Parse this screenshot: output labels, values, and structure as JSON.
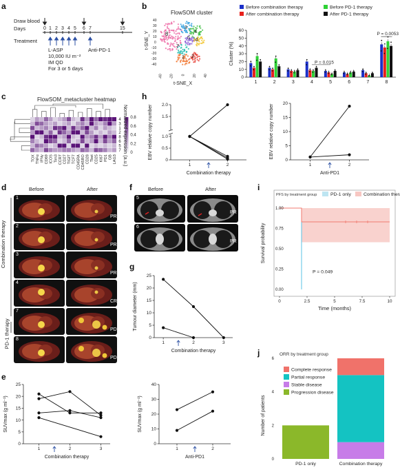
{
  "panels": {
    "a": "a",
    "b": "b",
    "c": "c",
    "d": "d",
    "e": "e",
    "f": "f",
    "g": "g",
    "h": "h",
    "i": "i",
    "j": "j"
  },
  "panel_a": {
    "draw_blood": "Draw blood",
    "days": "Days",
    "treatment": "Treatment",
    "day_ticks": [
      "0",
      "1",
      "2",
      "3",
      "4",
      "5",
      "6",
      "7",
      "15"
    ],
    "lasp": "L-ASP",
    "dose": "10,000 IU m⁻²",
    "route": "IM QD",
    "duration": "For 3 or 5 days",
    "anti_pd1": "Anti-PD-1"
  },
  "panel_b": {
    "tsne_title": "FlowSOM cluster",
    "tsne_xlabel": "t-SNE_X",
    "tsne_ylabel": "t-SNE_Y",
    "tsne_ticks": [
      "40",
      "30",
      "20",
      "10",
      "0",
      "-10",
      "-20",
      "-30",
      "-40"
    ],
    "cluster_labels": [
      "1",
      "2",
      "3",
      "4",
      "5",
      "6",
      "7",
      "8"
    ],
    "pvalue_4": "P = 0.015",
    "pvalue_8": "P = 0.0053"
  },
  "panel_c": {
    "title": "FlowSOM_metacluster heatmap",
    "scale_label": "Normalized expression",
    "scale_unit": "(a.u.)",
    "scale_ticks": [
      "0.8",
      "0.6",
      "0.4",
      "0.2",
      "0"
    ],
    "row_labels": [
      "4",
      "3",
      "1",
      "2",
      "8",
      "6",
      "5",
      "7"
    ],
    "col_labels": [
      "TOX",
      "TNFα",
      "IFNγ",
      "CD69",
      "ICOS",
      "Tim3",
      "CCR7",
      "CD27",
      "TIGIT",
      "TCF7",
      "CD45RA",
      "CD45RO",
      "CD28",
      "Tbet",
      "CD25",
      "KI67",
      "PD1",
      "GB",
      "LAG3"
    ]
  },
  "panel_d": {
    "before": "Before",
    "after": "After",
    "group_combo": "Combination therapy",
    "group_pd1": "PD-1 therapy",
    "rows": [
      {
        "id": "1",
        "response": "PR"
      },
      {
        "id": "2",
        "response": "PR"
      },
      {
        "id": "3",
        "response": "PR"
      },
      {
        "id": "4",
        "response": "CR"
      },
      {
        "id": "7",
        "response": "PD"
      },
      {
        "id": "8",
        "response": "PD"
      }
    ]
  },
  "panel_f": {
    "before": "Before",
    "after": "After",
    "rows": [
      {
        "id": "5",
        "response": "PR"
      },
      {
        "id": "6",
        "response": "PR"
      }
    ]
  },
  "panel_i_extra": {
    "pvalue": "P = 0.049"
  },
  "panel_j_extra": {
    "title": "ORR by treatment group"
  },
  "chart_data": [
    {
      "id": "b",
      "type": "bar",
      "ylabel": "Cluster (%)",
      "ylim": [
        0,
        60
      ],
      "yticks": [
        0,
        10,
        20,
        30,
        40,
        50,
        60
      ],
      "categories": [
        "1",
        "2",
        "3",
        "4",
        "5",
        "6",
        "7",
        "8"
      ],
      "legend_position": "top",
      "series": [
        {
          "name": "Before combination therapy",
          "color": "#1a2fc9",
          "values": [
            18,
            12,
            10,
            20,
            8,
            6,
            9,
            42
          ]
        },
        {
          "name": "After combination therapy",
          "color": "#e8211c",
          "values": [
            12,
            10,
            8,
            9,
            6,
            4,
            5,
            38
          ]
        },
        {
          "name": "Before PD-1 therapy",
          "color": "#2ed135",
          "values": [
            27,
            24,
            7,
            8,
            4,
            6,
            2,
            46
          ]
        },
        {
          "name": "After PD-1 therapy",
          "color": "#111111",
          "values": [
            20,
            14,
            9,
            12,
            8,
            7,
            5,
            40
          ]
        }
      ]
    },
    {
      "id": "c",
      "type": "heatmap",
      "rows": [
        "4",
        "3",
        "1",
        "2",
        "8",
        "6",
        "5",
        "7"
      ],
      "columns": [
        "TOX",
        "TNFα",
        "IFNγ",
        "CD69",
        "ICOS",
        "Tim3",
        "CCR7",
        "CD27",
        "TIGIT",
        "TCF7",
        "CD45RA",
        "CD45RO",
        "CD28",
        "Tbet",
        "CD25",
        "KI67",
        "PD1",
        "GB",
        "LAG3"
      ],
      "values": [
        [
          0.1,
          0.3,
          0.2,
          0.5,
          0.3,
          0.1,
          0.2,
          0.3,
          0.6,
          0.2,
          0.1,
          0.7,
          0.3,
          0.8,
          0.5,
          0.9,
          0.7,
          0.9,
          0.8
        ],
        [
          0.2,
          0.6,
          0.5,
          0.3,
          0.2,
          0.3,
          0.1,
          0.2,
          0.3,
          0.1,
          0.3,
          0.4,
          0.2,
          0.9,
          0.3,
          0.2,
          0.4,
          0.8,
          0.3
        ],
        [
          0.6,
          0.2,
          0.3,
          0.4,
          0.2,
          0.7,
          0.6,
          0.8,
          0.2,
          0.7,
          0.3,
          0.5,
          0.8,
          0.2,
          0.4,
          0.1,
          0.3,
          0.2,
          0.1
        ],
        [
          0.3,
          0.8,
          0.9,
          0.2,
          0.5,
          0.1,
          0.7,
          0.5,
          0.3,
          0.8,
          0.9,
          0.2,
          0.6,
          0.3,
          0.1,
          0.2,
          0.1,
          0.3,
          0.2
        ],
        [
          0.9,
          0.1,
          0.2,
          0.7,
          0.8,
          0.9,
          0.2,
          0.3,
          0.8,
          0.2,
          0.1,
          0.8,
          0.3,
          0.4,
          0.7,
          0.3,
          0.9,
          0.4,
          0.9
        ],
        [
          0.4,
          0.2,
          0.1,
          0.8,
          0.6,
          0.5,
          0.1,
          0.2,
          0.5,
          0.1,
          0.2,
          0.6,
          0.2,
          0.3,
          0.8,
          0.2,
          0.6,
          0.3,
          0.5
        ],
        [
          0.2,
          0.5,
          0.4,
          0.3,
          0.1,
          0.2,
          0.9,
          0.9,
          0.1,
          0.9,
          0.8,
          0.1,
          0.9,
          0.1,
          0.2,
          0.1,
          0.2,
          0.1,
          0.2
        ],
        [
          0.5,
          0.3,
          0.2,
          0.6,
          0.4,
          0.3,
          0.3,
          0.4,
          0.4,
          0.3,
          0.2,
          0.5,
          0.4,
          0.2,
          0.6,
          0.5,
          0.4,
          0.2,
          0.3
        ]
      ],
      "scale": [
        0,
        0.8
      ]
    },
    {
      "id": "e1",
      "type": "line",
      "xlabel": "Combination therapy",
      "ylabel": "SUVmax (g ml⁻¹)",
      "x": [
        1,
        2,
        3
      ],
      "xticks": [
        "1",
        "2",
        "3"
      ],
      "ylim": [
        0,
        25
      ],
      "yticks": [
        0,
        5,
        10,
        15,
        20,
        25
      ],
      "series": [
        {
          "values": [
            21,
            13,
            13
          ]
        },
        {
          "values": [
            19,
            22,
            12
          ]
        },
        {
          "values": [
            13,
            14,
            11
          ]
        },
        {
          "values": [
            11,
            null,
            3
          ]
        }
      ]
    },
    {
      "id": "e2",
      "type": "line",
      "xlabel": "Anti-PD1",
      "ylabel": "SUVmax (g ml⁻¹)",
      "x": [
        1,
        2
      ],
      "xticks": [
        "1",
        "2"
      ],
      "ylim": [
        0,
        40
      ],
      "yticks": [
        0,
        10,
        20,
        30,
        40
      ],
      "series": [
        {
          "values": [
            23,
            35
          ]
        },
        {
          "values": [
            9,
            22
          ]
        }
      ]
    },
    {
      "id": "g",
      "type": "line",
      "xlabel": "Combination therapy",
      "ylabel": "Tumour diameter (mm)",
      "x": [
        1,
        2,
        3
      ],
      "xticks": [
        "1",
        "2",
        "3"
      ],
      "ylim": [
        0,
        25
      ],
      "yticks": [
        0,
        5,
        10,
        15,
        20,
        25
      ],
      "series": [
        {
          "values": [
            23.5,
            12.5,
            0
          ]
        },
        {
          "values": [
            4,
            0,
            null
          ]
        }
      ]
    },
    {
      "id": "h1",
      "type": "line",
      "xlabel": "Combination therapy",
      "ylabel": "EBV relative copy number",
      "x": [
        1,
        2
      ],
      "xticks": [
        "1",
        "2"
      ],
      "yticks": [
        0,
        0.5,
        1.0,
        1.5,
        2.0
      ],
      "ylim": [
        0,
        2.2
      ],
      "series": [
        {
          "values": [
            1.0,
            2.0
          ]
        },
        {
          "values": [
            1.0,
            0.15
          ]
        },
        {
          "values": [
            1.0,
            0.08
          ]
        },
        {
          "values": [
            1.0,
            0.03
          ]
        }
      ]
    },
    {
      "id": "h2",
      "type": "line",
      "xlabel": "Anti-PD1",
      "ylabel": "EBV relative copy number",
      "x": [
        1,
        2
      ],
      "xticks": [
        "1",
        "2"
      ],
      "ylim": [
        0,
        20
      ],
      "yticks": [
        0,
        5,
        10,
        15,
        20
      ],
      "series": [
        {
          "values": [
            1,
            19
          ]
        },
        {
          "values": [
            1,
            1.8
          ]
        }
      ]
    },
    {
      "id": "i",
      "type": "line",
      "title": "PFS by treatment group",
      "xlabel": "Time (months)",
      "ylabel": "Survival probability",
      "xlim": [
        0,
        10
      ],
      "xticks": [
        0,
        2.5,
        5,
        7.5,
        10
      ],
      "ylim": [
        0,
        1
      ],
      "yticks": [
        0,
        0.25,
        0.5,
        0.75,
        1.0
      ],
      "series": [
        {
          "name": "PD-1 only",
          "color": "#59c3e6",
          "steps": [
            [
              0,
              1.0
            ],
            [
              2,
              1.0
            ],
            [
              2,
              0
            ]
          ]
        },
        {
          "name": "Combination therapy",
          "color": "#f07a6f",
          "steps": [
            [
              0,
              1.0
            ],
            [
              2,
              1.0
            ],
            [
              2,
              0.83
            ],
            [
              10,
              0.83
            ]
          ],
          "ci": [
            0.58,
            1.0
          ],
          "censor_x": [
            6,
            7,
            8
          ]
        }
      ]
    },
    {
      "id": "j",
      "type": "bar",
      "stacked": true,
      "title": "ORR by treatment group",
      "ylabel": "Number of patients",
      "ylim": [
        0,
        6
      ],
      "yticks": [
        0,
        2,
        4,
        6
      ],
      "categories": [
        "PD-1 only",
        "Combination therapy"
      ],
      "series": [
        {
          "name": "Progression disease",
          "color": "#8bb82a",
          "values": [
            2,
            0
          ]
        },
        {
          "name": "Stable disease",
          "color": "#c77ce8",
          "values": [
            0,
            1
          ]
        },
        {
          "name": "Partial response",
          "color": "#14c3c2",
          "values": [
            0,
            4
          ]
        },
        {
          "name": "Complete response",
          "color": "#f0726a",
          "values": [
            0,
            1
          ]
        }
      ]
    }
  ]
}
